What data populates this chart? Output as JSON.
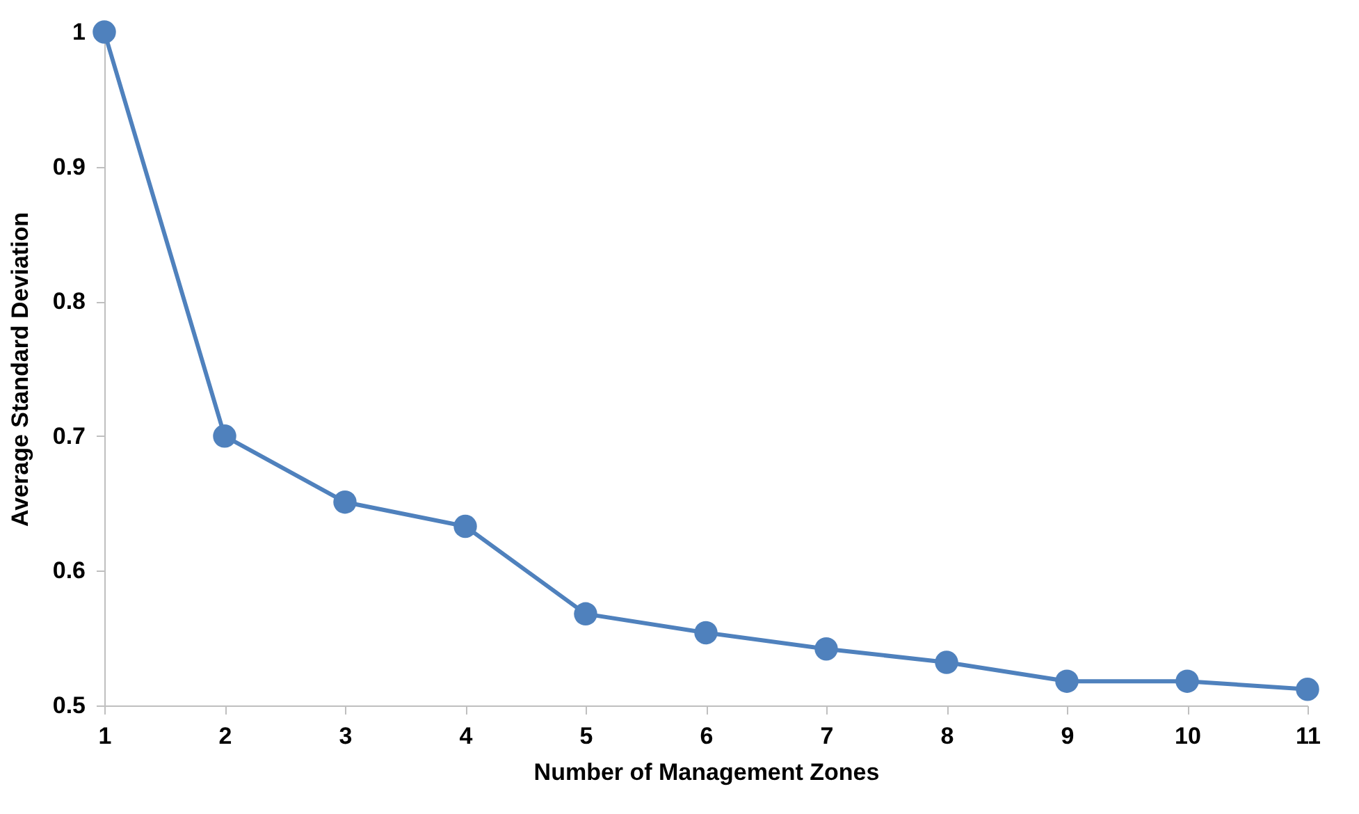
{
  "chart_data": {
    "type": "line",
    "xlabel": "Number of Management Zones",
    "ylabel": "Average Standard Deviation",
    "x": [
      1,
      2,
      3,
      4,
      5,
      6,
      7,
      8,
      9,
      10,
      11
    ],
    "series": [
      {
        "color": "#4f81bd",
        "values": [
          1.0,
          0.7,
          0.651,
          0.633,
          0.568,
          0.554,
          0.542,
          0.532,
          0.518,
          0.518,
          0.512
        ]
      }
    ],
    "xlim": [
      1,
      11
    ],
    "xticks": [
      1,
      2,
      3,
      4,
      5,
      6,
      7,
      8,
      9,
      10,
      11
    ],
    "ylim": [
      0.5,
      1
    ],
    "yticks": [
      0.5,
      0.6,
      0.7,
      0.8,
      0.9,
      1
    ],
    "grid": false,
    "legend": false,
    "marker": "circle",
    "line_style": "solid"
  }
}
